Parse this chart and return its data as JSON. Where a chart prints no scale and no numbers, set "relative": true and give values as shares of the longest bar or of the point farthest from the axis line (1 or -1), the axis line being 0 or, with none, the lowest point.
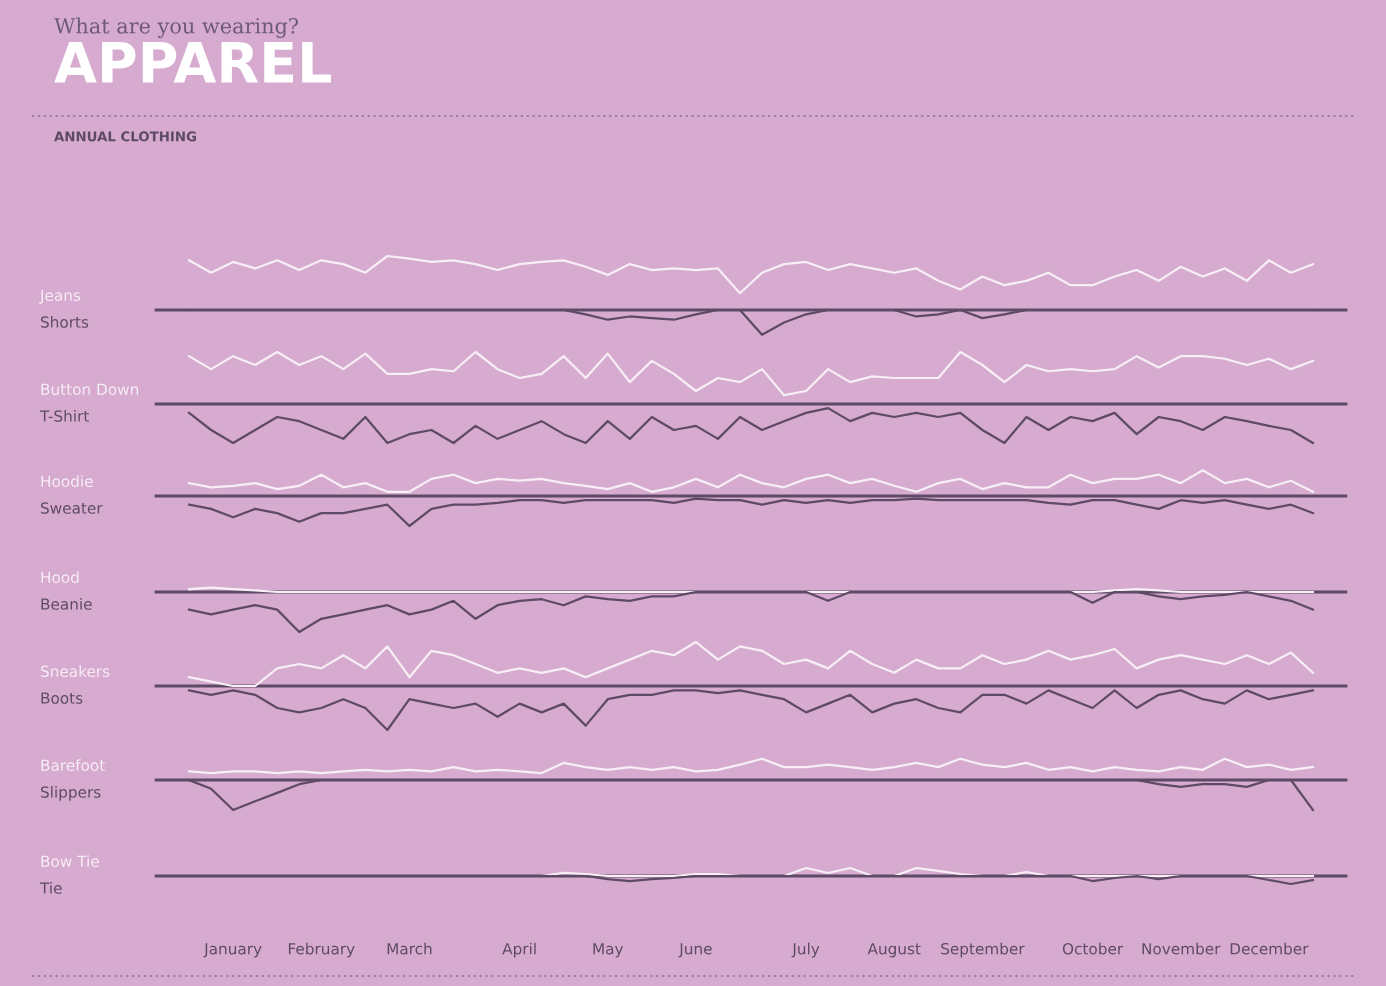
{
  "chart_data": [
    {
      "type": "line",
      "title": "APPAREL",
      "subtitle": "What are you wearing?",
      "annotations": [
        "ANNUAL CLOTHING"
      ],
      "relative": true,
      "categories": [
        null,
        null,
        null,
        null,
        null,
        null,
        null,
        null,
        null,
        null,
        null,
        null,
        null,
        null,
        null,
        null,
        null,
        null,
        null,
        null,
        null,
        null,
        null,
        null,
        null,
        null,
        null,
        null,
        null,
        null,
        null,
        null,
        null,
        null,
        null,
        null,
        null,
        null,
        null,
        null,
        null,
        null,
        null,
        null,
        null,
        null,
        null,
        null,
        null,
        null,
        null,
        null
      ],
      "series": [
        {
          "name": "Jeans",
          "color": "#f7eef6",
          "values": [
            0.92,
            0.69,
            0.89,
            0.77,
            0.92,
            0.74,
            0.92,
            0.85,
            0.69,
            1,
            0.95,
            0.89,
            0.92,
            0.85,
            0.74,
            0.85,
            0.89,
            0.92,
            0.8,
            0.65,
            0.85,
            0.74,
            0.77,
            0.74,
            0.77,
            0.31,
            0.69,
            0.85,
            0.89,
            0.74,
            0.85,
            0.77,
            0.69,
            0.77,
            0.54,
            0.38,
            0.62,
            0.46,
            0.54,
            0.69,
            0.46,
            0.46,
            0.62,
            0.74,
            0.54,
            0.8,
            0.62,
            0.77,
            0.54,
            0.92,
            0.69,
            0.85
          ]
        },
        {
          "name": "Shorts",
          "color": "#5e4a66",
          "values": [
            0,
            0,
            0,
            0,
            0,
            0,
            0,
            0,
            0,
            0,
            0,
            0,
            0,
            0,
            0,
            0,
            0,
            0,
            -0.08,
            -0.18,
            -0.12,
            -0.15,
            -0.18,
            -0.08,
            0,
            0,
            -0.46,
            -0.23,
            -0.08,
            0,
            0,
            0,
            0,
            -0.12,
            -0.08,
            0,
            -0.15,
            -0.08,
            0,
            0,
            0,
            0,
            0,
            0,
            0,
            0,
            0,
            0,
            0,
            0,
            0,
            0
          ]
        }
      ]
    },
    {
      "type": "line",
      "relative": true,
      "categories": [
        null,
        null,
        null,
        null,
        null,
        null,
        null,
        null,
        null,
        null,
        null,
        null,
        null,
        null,
        null,
        null,
        null,
        null,
        null,
        null,
        null,
        null,
        null,
        null,
        null,
        null,
        null,
        null,
        null,
        null,
        null,
        null,
        null,
        null,
        null,
        null,
        null,
        null,
        null,
        null,
        null,
        null,
        null,
        null,
        null,
        null,
        null,
        null,
        null,
        null,
        null,
        null
      ],
      "series": [
        {
          "name": "Button Down",
          "color": "#f7eef6",
          "values": [
            0.92,
            0.67,
            0.92,
            0.75,
            1,
            0.75,
            0.92,
            0.67,
            0.97,
            0.58,
            0.58,
            0.67,
            0.63,
            1,
            0.67,
            0.5,
            0.58,
            0.92,
            0.5,
            0.97,
            0.42,
            0.83,
            0.58,
            0.25,
            0.5,
            0.42,
            0.67,
            0.17,
            0.25,
            0.67,
            0.42,
            0.53,
            0.5,
            0.5,
            0.5,
            1,
            0.75,
            0.42,
            0.75,
            0.63,
            0.67,
            0.63,
            0.67,
            0.92,
            0.7,
            0.92,
            0.92,
            0.87,
            0.75,
            0.87,
            0.67,
            0.83
          ]
        },
        {
          "name": "T-Shirt",
          "color": "#5e4a66",
          "values": [
            -0.17,
            -0.5,
            -0.75,
            -0.5,
            -0.25,
            -0.33,
            -0.5,
            -0.67,
            -0.25,
            -0.75,
            -0.58,
            -0.5,
            -0.75,
            -0.42,
            -0.67,
            -0.5,
            -0.33,
            -0.58,
            -0.75,
            -0.33,
            -0.67,
            -0.25,
            -0.5,
            -0.42,
            -0.67,
            -0.25,
            -0.5,
            -0.33,
            -0.17,
            -0.08,
            -0.33,
            -0.17,
            -0.25,
            -0.17,
            -0.25,
            -0.17,
            -0.5,
            -0.75,
            -0.25,
            -0.5,
            -0.25,
            -0.33,
            -0.17,
            -0.58,
            -0.25,
            -0.33,
            -0.5,
            -0.25,
            -0.33,
            -0.42,
            -0.5,
            -0.75
          ]
        }
      ]
    },
    {
      "type": "line",
      "relative": true,
      "categories": [
        null,
        null,
        null,
        null,
        null,
        null,
        null,
        null,
        null,
        null,
        null,
        null,
        null,
        null,
        null,
        null,
        null,
        null,
        null,
        null,
        null,
        null,
        null,
        null,
        null,
        null,
        null,
        null,
        null,
        null,
        null,
        null,
        null,
        null,
        null,
        null,
        null,
        null,
        null,
        null,
        null,
        null,
        null,
        null,
        null,
        null,
        null,
        null,
        null,
        null,
        null,
        null
      ],
      "series": [
        {
          "name": "Hoodie",
          "color": "#f7eef6",
          "values": [
            0.43,
            0.29,
            0.34,
            0.43,
            0.23,
            0.34,
            0.71,
            0.29,
            0.43,
            0.14,
            0.14,
            0.57,
            0.71,
            0.43,
            0.57,
            0.51,
            0.57,
            0.43,
            0.34,
            0.23,
            0.43,
            0.14,
            0.29,
            0.57,
            0.29,
            0.71,
            0.43,
            0.29,
            0.57,
            0.71,
            0.43,
            0.57,
            0.34,
            0.14,
            0.43,
            0.57,
            0.23,
            0.43,
            0.29,
            0.29,
            0.71,
            0.43,
            0.57,
            0.57,
            0.71,
            0.43,
            0.86,
            0.43,
            0.57,
            0.29,
            0.51,
            0.14
          ]
        },
        {
          "name": "Sweater",
          "color": "#5e4a66",
          "values": [
            -0.29,
            -0.43,
            -0.71,
            -0.43,
            -0.57,
            -0.86,
            -0.57,
            -0.57,
            -0.43,
            -0.29,
            -1,
            -0.43,
            -0.29,
            -0.29,
            -0.23,
            -0.14,
            -0.14,
            -0.23,
            -0.14,
            -0.14,
            -0.14,
            -0.14,
            -0.23,
            -0.09,
            -0.14,
            -0.14,
            -0.29,
            -0.14,
            -0.23,
            -0.14,
            -0.23,
            -0.14,
            -0.14,
            -0.09,
            -0.14,
            -0.14,
            -0.14,
            -0.14,
            -0.14,
            -0.23,
            -0.29,
            -0.14,
            -0.14,
            -0.29,
            -0.43,
            -0.14,
            -0.23,
            -0.14,
            -0.29,
            -0.43,
            -0.29,
            -0.57
          ]
        }
      ]
    },
    {
      "type": "line",
      "relative": true,
      "categories": [
        null,
        null,
        null,
        null,
        null,
        null,
        null,
        null,
        null,
        null,
        null,
        null,
        null,
        null,
        null,
        null,
        null,
        null,
        null,
        null,
        null,
        null,
        null,
        null,
        null,
        null,
        null,
        null,
        null,
        null,
        null,
        null,
        null,
        null,
        null,
        null,
        null,
        null,
        null,
        null,
        null,
        null,
        null,
        null,
        null,
        null,
        null,
        null,
        null,
        null,
        null,
        null
      ],
      "series": [
        {
          "name": "Hood",
          "color": "#f7eef6",
          "values": [
            0.07,
            0.11,
            0.07,
            0.04,
            0,
            0,
            0,
            0,
            0,
            0,
            0,
            0,
            0,
            0,
            0,
            0,
            0,
            0,
            0,
            0,
            0,
            0,
            0,
            0,
            0,
            0,
            0,
            0,
            0,
            0,
            0,
            0,
            0,
            0,
            0,
            0,
            0,
            0,
            0,
            0,
            0,
            0,
            0.04,
            0.07,
            0.04,
            0,
            0,
            0,
            0,
            0,
            0,
            0
          ]
        },
        {
          "name": "Beanie",
          "color": "#5e4a66",
          "values": [
            -0.44,
            -0.56,
            -0.44,
            -0.33,
            -0.44,
            -1,
            -0.67,
            -0.56,
            -0.44,
            -0.33,
            -0.56,
            -0.44,
            -0.22,
            -0.67,
            -0.33,
            -0.22,
            -0.18,
            -0.33,
            -0.11,
            -0.18,
            -0.22,
            -0.11,
            -0.11,
            0,
            0,
            0,
            0,
            0,
            0,
            -0.22,
            0,
            0,
            0,
            0,
            0,
            0,
            0,
            0,
            0,
            0,
            0,
            -0.27,
            0,
            0,
            -0.11,
            -0.18,
            -0.11,
            -0.07,
            0,
            -0.11,
            -0.22,
            -0.44
          ]
        }
      ]
    },
    {
      "type": "line",
      "relative": true,
      "categories": [
        null,
        null,
        null,
        null,
        null,
        null,
        null,
        null,
        null,
        null,
        null,
        null,
        null,
        null,
        null,
        null,
        null,
        null,
        null,
        null,
        null,
        null,
        null,
        null,
        null,
        null,
        null,
        null,
        null,
        null,
        null,
        null,
        null,
        null,
        null,
        null,
        null,
        null,
        null,
        null,
        null,
        null,
        null,
        null,
        null,
        null,
        null,
        null,
        null,
        null,
        null,
        null
      ],
      "series": [
        {
          "name": "Sneakers",
          "color": "#f7eef6",
          "values": [
            0.2,
            0.1,
            0,
            0,
            0.4,
            0.5,
            0.4,
            0.7,
            0.4,
            0.9,
            0.2,
            0.8,
            0.7,
            0.5,
            0.3,
            0.4,
            0.3,
            0.4,
            0.2,
            0.4,
            0.6,
            0.8,
            0.7,
            1,
            0.6,
            0.9,
            0.8,
            0.5,
            0.6,
            0.4,
            0.8,
            0.5,
            0.3,
            0.6,
            0.4,
            0.4,
            0.7,
            0.5,
            0.6,
            0.8,
            0.6,
            0.7,
            0.84,
            0.4,
            0.6,
            0.7,
            0.6,
            0.5,
            0.7,
            0.5,
            0.76,
            0.3
          ]
        },
        {
          "name": "Boots",
          "color": "#5e4a66",
          "values": [
            -0.1,
            -0.2,
            -0.1,
            -0.2,
            -0.5,
            -0.6,
            -0.5,
            -0.3,
            -0.5,
            -1,
            -0.3,
            -0.4,
            -0.5,
            -0.4,
            -0.7,
            -0.4,
            -0.6,
            -0.4,
            -0.9,
            -0.3,
            -0.2,
            -0.2,
            -0.1,
            -0.1,
            -0.16,
            -0.1,
            -0.2,
            -0.3,
            -0.6,
            -0.4,
            -0.2,
            -0.6,
            -0.4,
            -0.3,
            -0.5,
            -0.6,
            -0.2,
            -0.2,
            -0.4,
            -0.1,
            -0.3,
            -0.5,
            -0.1,
            -0.5,
            -0.2,
            -0.1,
            -0.3,
            -0.4,
            -0.1,
            -0.3,
            -0.2,
            -0.1
          ]
        }
      ]
    },
    {
      "type": "line",
      "relative": true,
      "categories": [
        null,
        null,
        null,
        null,
        null,
        null,
        null,
        null,
        null,
        null,
        null,
        null,
        null,
        null,
        null,
        null,
        null,
        null,
        null,
        null,
        null,
        null,
        null,
        null,
        null,
        null,
        null,
        null,
        null,
        null,
        null,
        null,
        null,
        null,
        null,
        null,
        null,
        null,
        null,
        null,
        null,
        null,
        null,
        null,
        null,
        null,
        null,
        null,
        null,
        null,
        null,
        null
      ],
      "series": [
        {
          "name": "Barefoot",
          "color": "#f7eef6",
          "values": [
            0.29,
            0.23,
            0.29,
            0.29,
            0.23,
            0.29,
            0.23,
            0.29,
            0.34,
            0.29,
            0.34,
            0.29,
            0.43,
            0.29,
            0.34,
            0.29,
            0.23,
            0.57,
            0.43,
            0.34,
            0.43,
            0.34,
            0.43,
            0.29,
            0.34,
            0.51,
            0.71,
            0.43,
            0.43,
            0.51,
            0.43,
            0.34,
            0.43,
            0.57,
            0.43,
            0.71,
            0.51,
            0.43,
            0.57,
            0.34,
            0.43,
            0.29,
            0.43,
            0.34,
            0.29,
            0.43,
            0.34,
            0.71,
            0.43,
            0.51,
            0.34,
            0.43
          ]
        },
        {
          "name": "Slippers",
          "color": "#5e4a66",
          "values": [
            0,
            -0.29,
            -1,
            -0.71,
            -0.43,
            -0.14,
            0,
            0,
            0,
            0,
            0,
            0,
            0,
            0,
            0,
            0,
            0,
            0,
            0,
            0,
            0,
            0,
            0,
            0,
            0,
            0,
            0,
            0,
            0,
            0,
            0,
            0,
            0,
            0,
            0,
            0,
            0,
            0,
            0,
            0,
            0,
            0,
            0,
            0,
            -0.14,
            -0.23,
            -0.14,
            -0.14,
            -0.23,
            0,
            0,
            -1
          ]
        }
      ]
    },
    {
      "type": "line",
      "relative": true,
      "categories": [
        null,
        null,
        "January",
        null,
        null,
        null,
        "February",
        null,
        null,
        null,
        "March",
        null,
        null,
        null,
        null,
        "April",
        null,
        null,
        null,
        "May",
        null,
        null,
        null,
        "June",
        null,
        null,
        null,
        null,
        "July",
        null,
        null,
        null,
        "August",
        null,
        null,
        null,
        "September",
        null,
        null,
        null,
        null,
        "October",
        null,
        null,
        null,
        "November",
        null,
        null,
        null,
        "December",
        null,
        null
      ],
      "series": [
        {
          "name": "Bow Tie",
          "color": "#f7eef6",
          "values": [
            null,
            null,
            null,
            null,
            null,
            null,
            null,
            null,
            null,
            null,
            null,
            null,
            null,
            null,
            null,
            0,
            0,
            0.38,
            0.25,
            0,
            0,
            0,
            0,
            0.25,
            0.25,
            0,
            0,
            0,
            1,
            0.38,
            1,
            0,
            0,
            1,
            0.63,
            0.25,
            0,
            0,
            0.5,
            0,
            0,
            0,
            0,
            0,
            0,
            0,
            0,
            0,
            0,
            0,
            0,
            0
          ]
        },
        {
          "name": "Tie",
          "color": "#5e4a66",
          "values": [
            0,
            0,
            0,
            0,
            0,
            0,
            0,
            0,
            0,
            0,
            0,
            0,
            0,
            0,
            0,
            0,
            0,
            0,
            0,
            -0.38,
            -0.63,
            -0.38,
            -0.25,
            0,
            0,
            0,
            0,
            0,
            0,
            0,
            0,
            0,
            0,
            0,
            0,
            0,
            0,
            0,
            0,
            0,
            0,
            -0.63,
            -0.25,
            0,
            -0.38,
            0,
            0,
            0,
            0,
            -0.5,
            -1,
            -0.5
          ]
        }
      ]
    }
  ]
}
